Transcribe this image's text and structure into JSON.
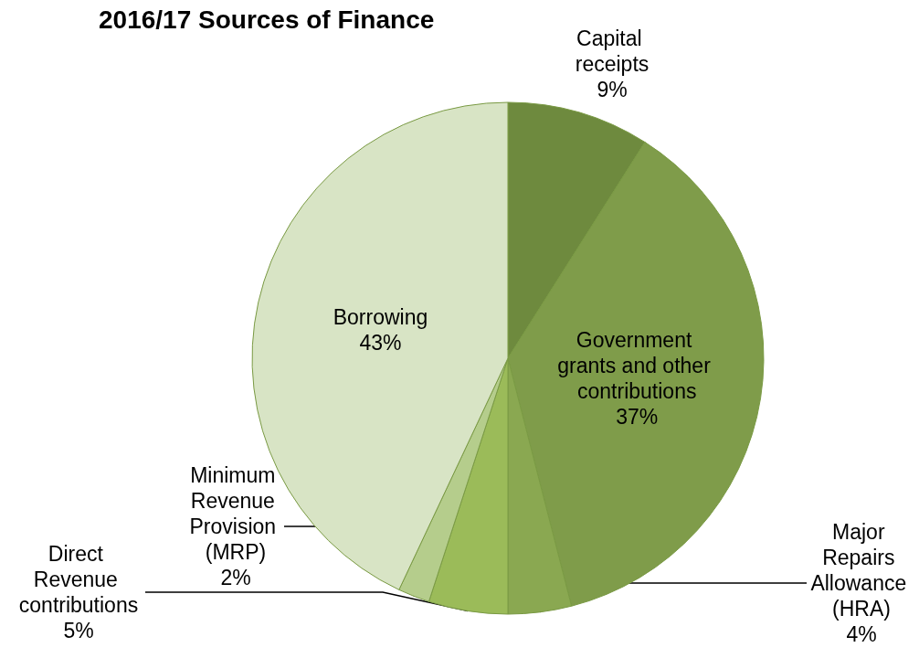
{
  "chart_data": {
    "type": "pie",
    "title": "2016/17 Sources of Finance",
    "categories": [
      "Capital receipts",
      "Government grants and other contributions",
      "Major Repairs Allowance (HRA)",
      "Direct Revenue contributions",
      "Minimum Revenue Provision (MRP)",
      "Borrowing"
    ],
    "values": [
      9,
      37,
      4,
      5,
      2,
      43
    ],
    "colors": [
      "#6e8a3e",
      "#7f9c4a",
      "#8aa851",
      "#9bbb59",
      "#b5cd8c",
      "#d8e4c5"
    ],
    "value_labels": [
      "9%",
      "37%",
      "4%",
      "5%",
      "2%",
      "43%"
    ],
    "legend": false
  }
}
